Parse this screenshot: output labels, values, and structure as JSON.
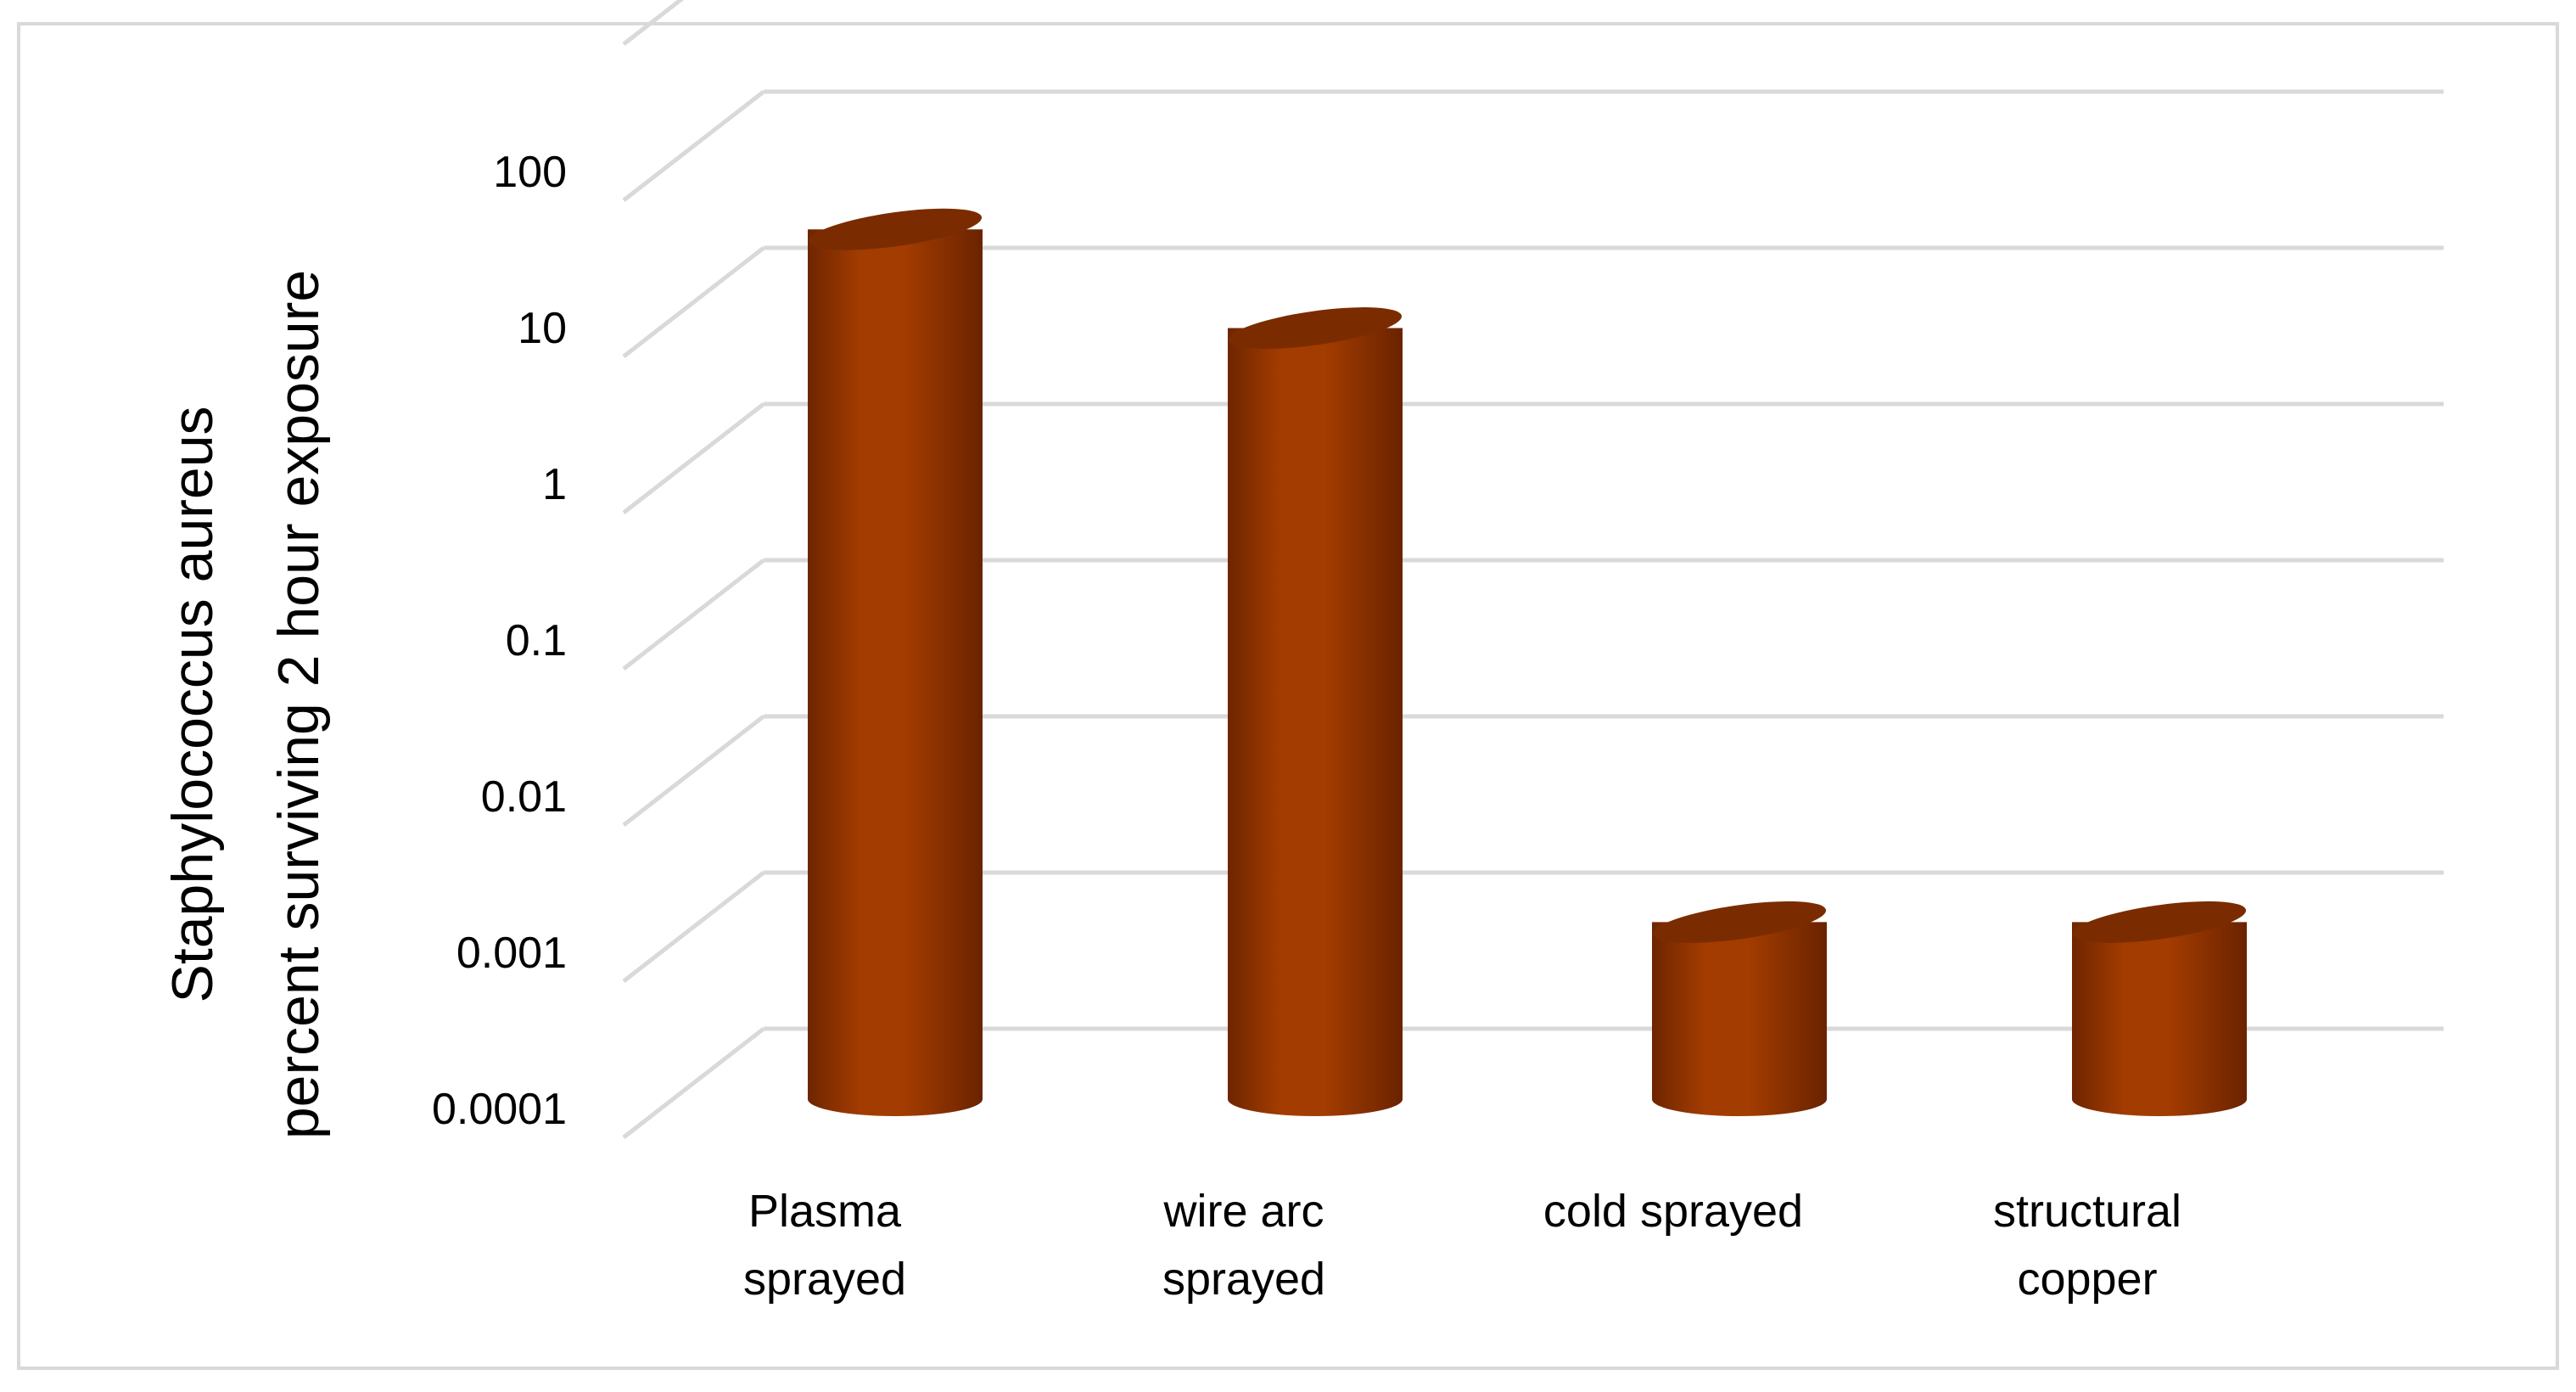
{
  "chart_data": {
    "type": "bar",
    "bar_shape": "cylinder-3d",
    "scale": "log",
    "ylabel_lines": [
      "Staphylococcus aureus",
      "percent surviving 2 hour exposure"
    ],
    "y_ticks": [
      "0.0001",
      "0.001",
      "0.01",
      "0.1",
      "1",
      "10",
      "100"
    ],
    "ylim": [
      0.0001,
      100
    ],
    "categories": [
      [
        "Plasma",
        "sprayed"
      ],
      [
        "wire arc",
        "sprayed"
      ],
      [
        "cold sprayed"
      ],
      [
        "structural",
        "copper"
      ]
    ],
    "values": [
      30,
      7,
      0.0011,
      0.0011
    ],
    "grid": true,
    "colors": {
      "bar_main": "#a33c00",
      "bar_dark": "#6e2500",
      "bar_top": "#7a2c00",
      "grid": "#d9d9d9"
    }
  }
}
